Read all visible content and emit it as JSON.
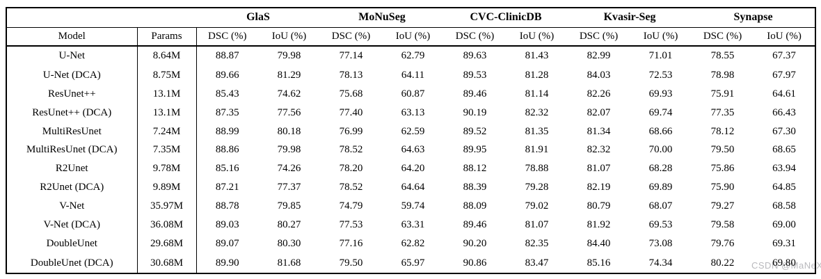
{
  "watermark": {
    "text": "CSDN @MaNeXy",
    "color": "#b9b9bd"
  },
  "table": {
    "column_groups": [
      {
        "label": "",
        "span": 2
      },
      {
        "label": "GlaS",
        "span": 2
      },
      {
        "label": "MoNuSeg",
        "span": 2
      },
      {
        "label": "CVC-ClinicDB",
        "span": 2
      },
      {
        "label": "Kvasir-Seg",
        "span": 2
      },
      {
        "label": "Synapse",
        "span": 2
      }
    ],
    "sub_headers": [
      "Model",
      "Params",
      "DSC (%)",
      "IoU (%)",
      "DSC (%)",
      "IoU (%)",
      "DSC (%)",
      "IoU (%)",
      "DSC (%)",
      "IoU (%)",
      "DSC (%)",
      "IoU (%)"
    ],
    "rows": [
      {
        "model": "U-Net",
        "model_bold": false,
        "params": "8.64M",
        "values": [
          "88.87",
          "79.98",
          "77.14",
          "62.79",
          "89.63",
          "81.43",
          "82.99",
          "71.01",
          "78.55",
          "67.37"
        ],
        "bold": [
          false,
          false,
          false,
          false,
          true,
          true,
          false,
          false,
          false,
          false
        ]
      },
      {
        "model": "U-Net (DCA)",
        "model_bold": true,
        "params": "8.75M",
        "values": [
          "89.66",
          "81.29",
          "78.13",
          "64.11",
          "89.53",
          "81.28",
          "84.03",
          "72.53",
          "78.98",
          "67.97"
        ],
        "bold": [
          true,
          true,
          true,
          true,
          false,
          false,
          true,
          true,
          true,
          true
        ]
      },
      {
        "model": "ResUnet++",
        "model_bold": false,
        "params": "13.1M",
        "values": [
          "85.43",
          "74.62",
          "75.68",
          "60.87",
          "89.46",
          "81.14",
          "82.26",
          "69.93",
          "75.91",
          "64.61"
        ],
        "bold": [
          false,
          false,
          false,
          false,
          false,
          false,
          true,
          true,
          false,
          false
        ]
      },
      {
        "model": "ResUnet++ (DCA)",
        "model_bold": true,
        "params": "13.1M",
        "values": [
          "87.35",
          "77.56",
          "77.40",
          "63.13",
          "90.19",
          "82.32",
          "82.07",
          "69.74",
          "77.35",
          "66.43"
        ],
        "bold": [
          true,
          true,
          true,
          true,
          true,
          true,
          false,
          false,
          true,
          true
        ]
      },
      {
        "model": "MultiResUnet",
        "model_bold": false,
        "params": "7.24M",
        "values": [
          "88.99",
          "80.18",
          "76.99",
          "62.59",
          "89.52",
          "81.35",
          "81.34",
          "68.66",
          "78.12",
          "67.30"
        ],
        "bold": [
          true,
          true,
          false,
          false,
          false,
          false,
          false,
          false,
          false,
          false
        ]
      },
      {
        "model": "MultiResUnet (DCA)",
        "model_bold": true,
        "params": "7.35M",
        "values": [
          "88.86",
          "79.98",
          "78.52",
          "64.63",
          "89.95",
          "81.91",
          "82.32",
          "70.00",
          "79.50",
          "68.65"
        ],
        "bold": [
          false,
          false,
          true,
          true,
          true,
          true,
          true,
          true,
          true,
          true
        ]
      },
      {
        "model": "R2Unet",
        "model_bold": false,
        "params": "9.78M",
        "values": [
          "85.16",
          "74.26",
          "78.20",
          "64.20",
          "88.12",
          "78.88",
          "81.07",
          "68.28",
          "75.86",
          "63.94"
        ],
        "bold": [
          false,
          false,
          false,
          false,
          false,
          false,
          false,
          false,
          false,
          false
        ]
      },
      {
        "model": "R2Unet (DCA)",
        "model_bold": true,
        "params": "9.89M",
        "values": [
          "87.21",
          "77.37",
          "78.52",
          "64.64",
          "88.39",
          "79.28",
          "82.19",
          "69.89",
          "75.90",
          "64.85"
        ],
        "bold": [
          true,
          true,
          true,
          true,
          true,
          true,
          true,
          true,
          true,
          true
        ]
      },
      {
        "model": "V-Net",
        "model_bold": false,
        "params": "35.97M",
        "values": [
          "88.78",
          "79.85",
          "74.79",
          "59.74",
          "88.09",
          "79.02",
          "80.79",
          "68.07",
          "79.27",
          "68.58"
        ],
        "bold": [
          false,
          false,
          false,
          false,
          false,
          false,
          false,
          false,
          false,
          false
        ]
      },
      {
        "model": "V-Net (DCA)",
        "model_bold": true,
        "params": "36.08M",
        "values": [
          "89.03",
          "80.27",
          "77.53",
          "63.31",
          "89.46",
          "81.07",
          "81.92",
          "69.53",
          "79.58",
          "69.00"
        ],
        "bold": [
          true,
          true,
          true,
          true,
          true,
          true,
          true,
          true,
          true,
          true
        ]
      },
      {
        "model": "DoubleUnet",
        "model_bold": false,
        "params": "29.68M",
        "values": [
          "89.07",
          "80.30",
          "77.16",
          "62.82",
          "90.20",
          "82.35",
          "84.40",
          "73.08",
          "79.76",
          "69.31"
        ],
        "bold": [
          false,
          false,
          false,
          false,
          false,
          false,
          false,
          false,
          false,
          false
        ]
      },
      {
        "model": "DoubleUnet (DCA)",
        "model_bold": true,
        "params": "30.68M",
        "values": [
          "89.90",
          "81.68",
          "79.50",
          "65.97",
          "90.86",
          "83.47",
          "85.16",
          "74.34",
          "80.22",
          "69.80"
        ],
        "bold": [
          true,
          true,
          true,
          true,
          true,
          true,
          true,
          true,
          true,
          true
        ]
      }
    ]
  }
}
